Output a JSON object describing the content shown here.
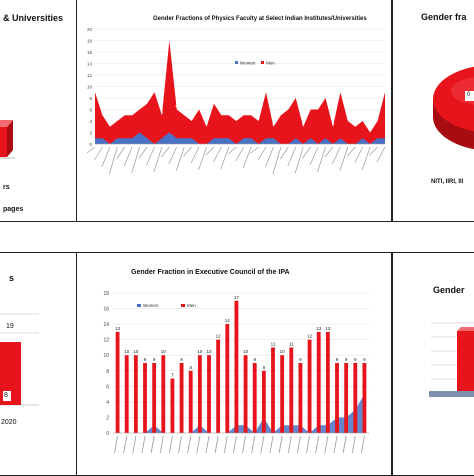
{
  "panels": {
    "top_left": {
      "title": "& Universities",
      "labels": [
        "rs",
        "pages"
      ]
    },
    "top_center": {
      "title": "Gender Fractions of Physics Faculty at Select Indian Institutes/Universities",
      "legend": [
        "Women",
        "Men"
      ]
    },
    "top_right": {
      "title": "Gender fra",
      "caption": "NITI, IIRI, Ill",
      "slice_label": "0"
    },
    "bottom_left": {
      "title": "s",
      "value_label": "19",
      "bar_label": "8",
      "year_label": "2020"
    },
    "bottom_center": {
      "title": "Gender Fraction in Executive Council of the IPA",
      "legend": [
        "Women",
        "Men"
      ]
    },
    "bottom_right": {
      "title": "Gender"
    }
  },
  "colors": {
    "men": "#e8141c",
    "women": "#4a72c4",
    "border": "#222222"
  },
  "chart_data": [
    {
      "type": "area",
      "title": "Gender Fractions of Physics Faculty at Select Indian Institutes/Universities",
      "ylim": [
        0,
        20
      ],
      "yticks": [
        0,
        2,
        4,
        6,
        8,
        10,
        12,
        14,
        16,
        18,
        20
      ],
      "series": [
        {
          "name": "Women",
          "values": [
            1,
            1,
            0,
            1,
            1,
            1,
            2,
            1,
            0,
            1,
            2,
            1,
            1,
            1,
            0,
            0,
            1,
            1,
            1,
            0,
            1,
            1,
            0,
            1,
            1,
            0,
            0,
            1,
            0,
            1,
            0,
            1,
            0,
            1,
            0,
            0,
            1,
            0,
            1,
            1
          ]
        },
        {
          "name": "Men",
          "values": [
            9,
            5,
            3,
            4,
            5,
            5,
            6,
            7,
            9,
            5,
            18,
            6,
            5,
            4,
            6,
            3,
            7,
            5,
            5,
            4,
            5,
            5,
            4,
            9,
            3,
            5,
            6,
            8,
            3,
            6,
            6,
            8,
            3,
            9,
            4,
            3,
            4,
            2,
            4,
            9
          ]
        }
      ]
    },
    {
      "type": "bar",
      "title": "Gender Fraction in Executive Council of the IPA",
      "ylim": [
        0,
        18
      ],
      "yticks": [
        0,
        2,
        4,
        6,
        8,
        10,
        12,
        14,
        16,
        18
      ],
      "series": [
        {
          "name": "Women",
          "values": [
            0,
            0,
            0,
            0,
            1,
            0,
            0,
            0,
            0,
            1,
            0,
            0,
            0,
            1,
            1,
            0,
            2,
            0,
            1,
            1,
            1,
            0,
            1,
            1,
            2,
            2,
            3,
            5
          ]
        },
        {
          "name": "Men",
          "values": [
            13,
            10,
            10,
            9,
            9,
            10,
            7,
            9,
            8,
            10,
            10,
            12,
            14,
            17,
            10,
            9,
            8,
            11,
            10,
            11,
            9,
            12,
            13,
            13,
            9,
            9,
            9,
            9
          ]
        }
      ]
    }
  ]
}
